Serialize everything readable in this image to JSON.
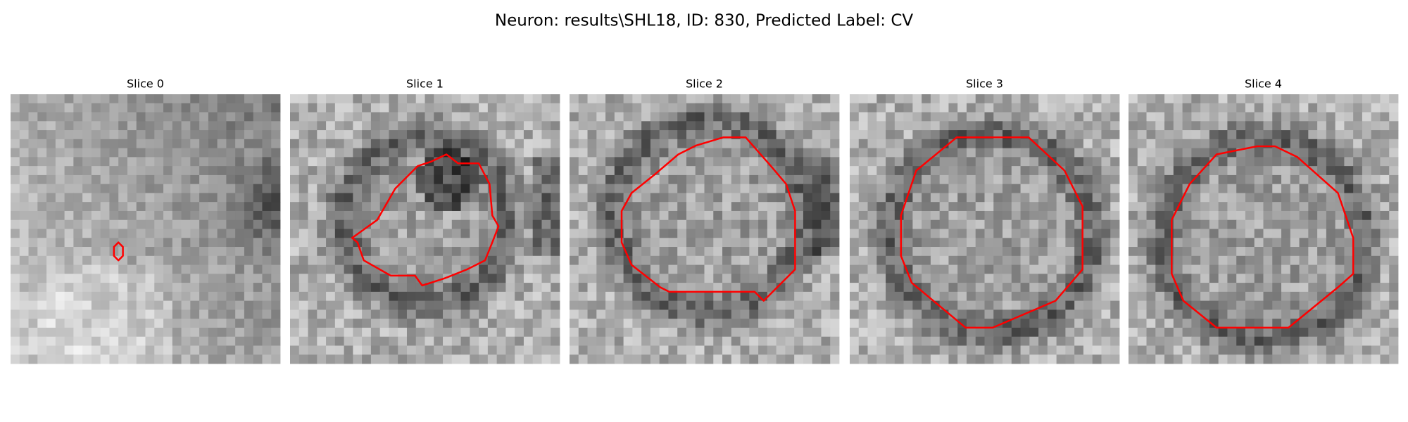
{
  "title": "Neuron: results\\SHL18, ID: 830, Predicted Label: CV",
  "panels": [
    {
      "title": "Slice 0"
    },
    {
      "title": "Slice 1"
    },
    {
      "title": "Slice 2"
    },
    {
      "title": "Slice 3"
    },
    {
      "title": "Slice 4"
    }
  ]
}
